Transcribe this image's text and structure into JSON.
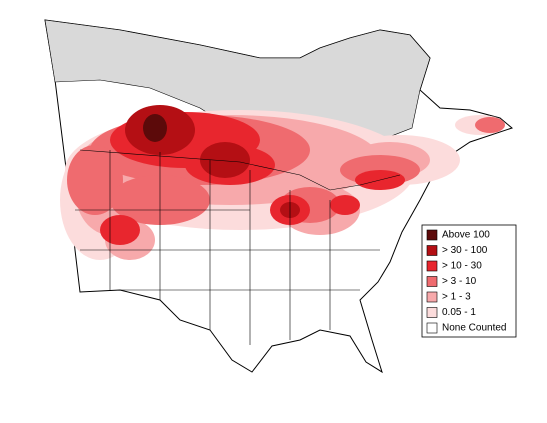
{
  "legend": {
    "items": [
      {
        "label": "Above 100",
        "color": "#5c0a0a"
      },
      {
        "label": "> 30 - 100",
        "color": "#b40f14"
      },
      {
        "label": "> 10 - 30",
        "color": "#e8262e"
      },
      {
        "label": "> 3 - 10",
        "color": "#ef6b6f"
      },
      {
        "label": "> 1 - 3",
        "color": "#f7a9ab"
      },
      {
        "label": "0.05 - 1",
        "color": "#fcdcdc"
      },
      {
        "label": "None Counted",
        "color": "#ffffff"
      }
    ]
  }
}
